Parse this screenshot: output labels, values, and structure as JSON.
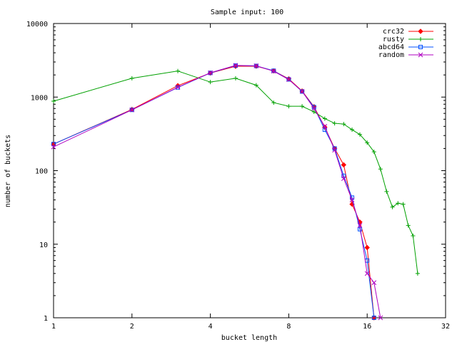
{
  "chart_data": {
    "type": "line",
    "title": "Sample input: 100",
    "xlabel": "bucket length",
    "ylabel": "number of buckets",
    "x_scale": "log2",
    "y_scale": "log10",
    "xlim": [
      1,
      32
    ],
    "ylim": [
      1,
      10000
    ],
    "x_ticks": [
      1,
      2,
      4,
      8,
      16,
      32
    ],
    "x_tick_labels": [
      "1",
      "2",
      "4",
      "8",
      "16",
      "32"
    ],
    "y_ticks": [
      1,
      10,
      100,
      1000,
      10000
    ],
    "y_tick_labels": [
      "1",
      "10",
      "100",
      "1000",
      "10000"
    ],
    "grid": false,
    "legend_position": "top-right",
    "series": [
      {
        "name": "crc32",
        "color": "#ff0000",
        "marker": "diamond",
        "x": [
          1,
          2,
          3,
          4,
          5,
          6,
          7,
          8,
          9,
          10,
          11,
          12,
          13,
          14,
          15,
          16,
          17
        ],
        "y": [
          230,
          680,
          1430,
          2120,
          2620,
          2630,
          2270,
          1770,
          1210,
          740,
          390,
          200,
          120,
          35,
          20,
          9,
          1
        ]
      },
      {
        "name": "rusty",
        "color": "#00a000",
        "marker": "plus",
        "x": [
          1,
          2,
          3,
          4,
          5,
          6,
          7,
          8,
          9,
          10,
          11,
          12,
          13,
          14,
          15,
          16,
          17,
          18,
          19,
          20,
          21,
          22,
          23,
          24,
          25
        ],
        "y": [
          880,
          1800,
          2260,
          1600,
          1800,
          1450,
          840,
          750,
          750,
          630,
          510,
          440,
          430,
          360,
          310,
          240,
          180,
          105,
          52,
          32,
          36,
          35,
          18,
          13,
          4
        ]
      },
      {
        "name": "abcd64",
        "color": "#0050ff",
        "marker": "square",
        "x": [
          1,
          2,
          3,
          4,
          5,
          6,
          7,
          8,
          9,
          10,
          11,
          12,
          13,
          14,
          15,
          16,
          17
        ],
        "y": [
          230,
          670,
          1350,
          2130,
          2680,
          2650,
          2280,
          1740,
          1190,
          730,
          360,
          200,
          85,
          43,
          16,
          6,
          1
        ]
      },
      {
        "name": "random",
        "color": "#b000c0",
        "marker": "x",
        "x": [
          1,
          2,
          3,
          4,
          5,
          6,
          7,
          8,
          9,
          10,
          11,
          12,
          13,
          14,
          15,
          16,
          17,
          18
        ],
        "y": [
          210,
          670,
          1360,
          2140,
          2700,
          2660,
          2250,
          1730,
          1200,
          700,
          400,
          190,
          78,
          40,
          18,
          4,
          3,
          1
        ]
      }
    ]
  }
}
